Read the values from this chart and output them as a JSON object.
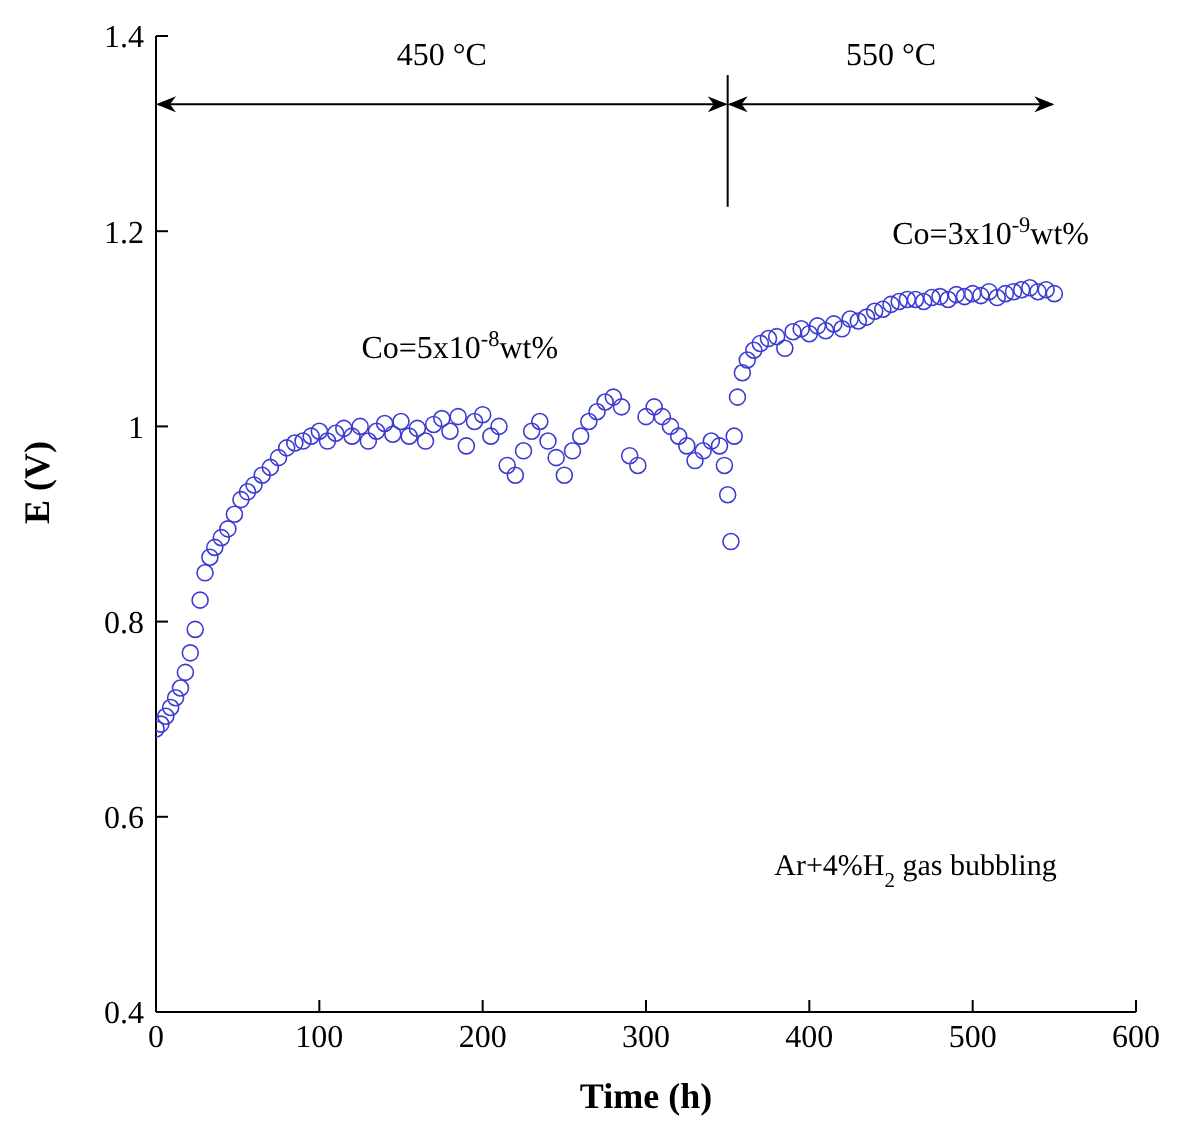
{
  "chart_data": {
    "type": "scatter",
    "xlabel": "Time (h)",
    "ylabel": "E (V)",
    "xlim": [
      0,
      600
    ],
    "xticks": [
      0,
      100,
      200,
      300,
      400,
      500,
      600
    ],
    "ylim": [
      0.4,
      1.4
    ],
    "yticks": [
      0.4,
      0.6,
      0.8,
      1,
      1.2,
      1.4
    ],
    "marker": "circle",
    "grid": false,
    "legend": false,
    "series": [
      {
        "color": "#3c3cd2",
        "x": [
          0,
          3,
          6,
          9,
          12,
          15,
          18,
          21,
          24,
          27,
          30,
          33,
          36,
          40,
          44,
          48,
          52,
          56,
          60,
          65,
          70,
          75,
          80,
          85,
          90,
          95,
          100,
          105,
          110,
          115,
          120,
          125,
          130,
          135,
          140,
          145,
          150,
          155,
          160,
          165,
          170,
          175,
          180,
          185,
          190,
          195,
          200,
          205,
          210,
          215,
          220,
          225,
          230,
          235,
          240,
          245,
          250,
          255,
          260,
          265,
          270,
          275,
          280,
          285,
          290,
          295,
          300,
          305,
          310,
          315,
          320,
          325,
          330,
          335,
          340,
          345,
          348,
          350,
          352,
          354,
          356,
          359,
          362,
          366,
          370,
          375,
          380,
          385,
          390,
          395,
          400,
          405,
          410,
          415,
          420,
          425,
          430,
          435,
          440,
          445,
          450,
          455,
          460,
          465,
          470,
          475,
          480,
          485,
          490,
          495,
          500,
          505,
          510,
          515,
          520,
          525,
          530,
          535,
          540,
          545,
          550
        ],
        "values": [
          0.69,
          0.695,
          0.703,
          0.712,
          0.722,
          0.732,
          0.748,
          0.768,
          0.792,
          0.822,
          0.85,
          0.866,
          0.876,
          0.886,
          0.895,
          0.91,
          0.925,
          0.933,
          0.94,
          0.95,
          0.958,
          0.968,
          0.978,
          0.983,
          0.985,
          0.99,
          0.995,
          0.985,
          0.993,
          0.998,
          0.99,
          1,
          0.985,
          0.995,
          1.003,
          0.992,
          1.005,
          0.99,
          0.998,
          0.985,
          1.002,
          1.008,
          0.995,
          1.01,
          0.98,
          1.005,
          1.012,
          0.99,
          1,
          0.96,
          0.95,
          0.975,
          0.995,
          1.005,
          0.985,
          0.968,
          0.95,
          0.975,
          0.99,
          1.005,
          1.015,
          1.025,
          1.03,
          1.02,
          0.97,
          0.96,
          1.01,
          1.02,
          1.01,
          1,
          0.99,
          0.98,
          0.965,
          0.975,
          0.985,
          0.98,
          0.96,
          0.93,
          0.882,
          0.99,
          1.03,
          1.055,
          1.068,
          1.078,
          1.085,
          1.09,
          1.092,
          1.08,
          1.097,
          1.1,
          1.095,
          1.103,
          1.098,
          1.105,
          1.1,
          1.11,
          1.108,
          1.112,
          1.118,
          1.12,
          1.125,
          1.128,
          1.13,
          1.13,
          1.128,
          1.132,
          1.133,
          1.13,
          1.135,
          1.133,
          1.136,
          1.134,
          1.138,
          1.132,
          1.136,
          1.138,
          1.14,
          1.142,
          1.138,
          1.14,
          1.136
        ]
      }
    ],
    "ref_lines": [
      {
        "axis": "x",
        "value": 350
      }
    ],
    "annotations": [
      "450 °C",
      "550 °C",
      "Co=5x10$^{-8}$wt%",
      "Co=3x10$^{-9}$wt%",
      "Ar+4%H$_{2}$ gas bubbling"
    ]
  }
}
